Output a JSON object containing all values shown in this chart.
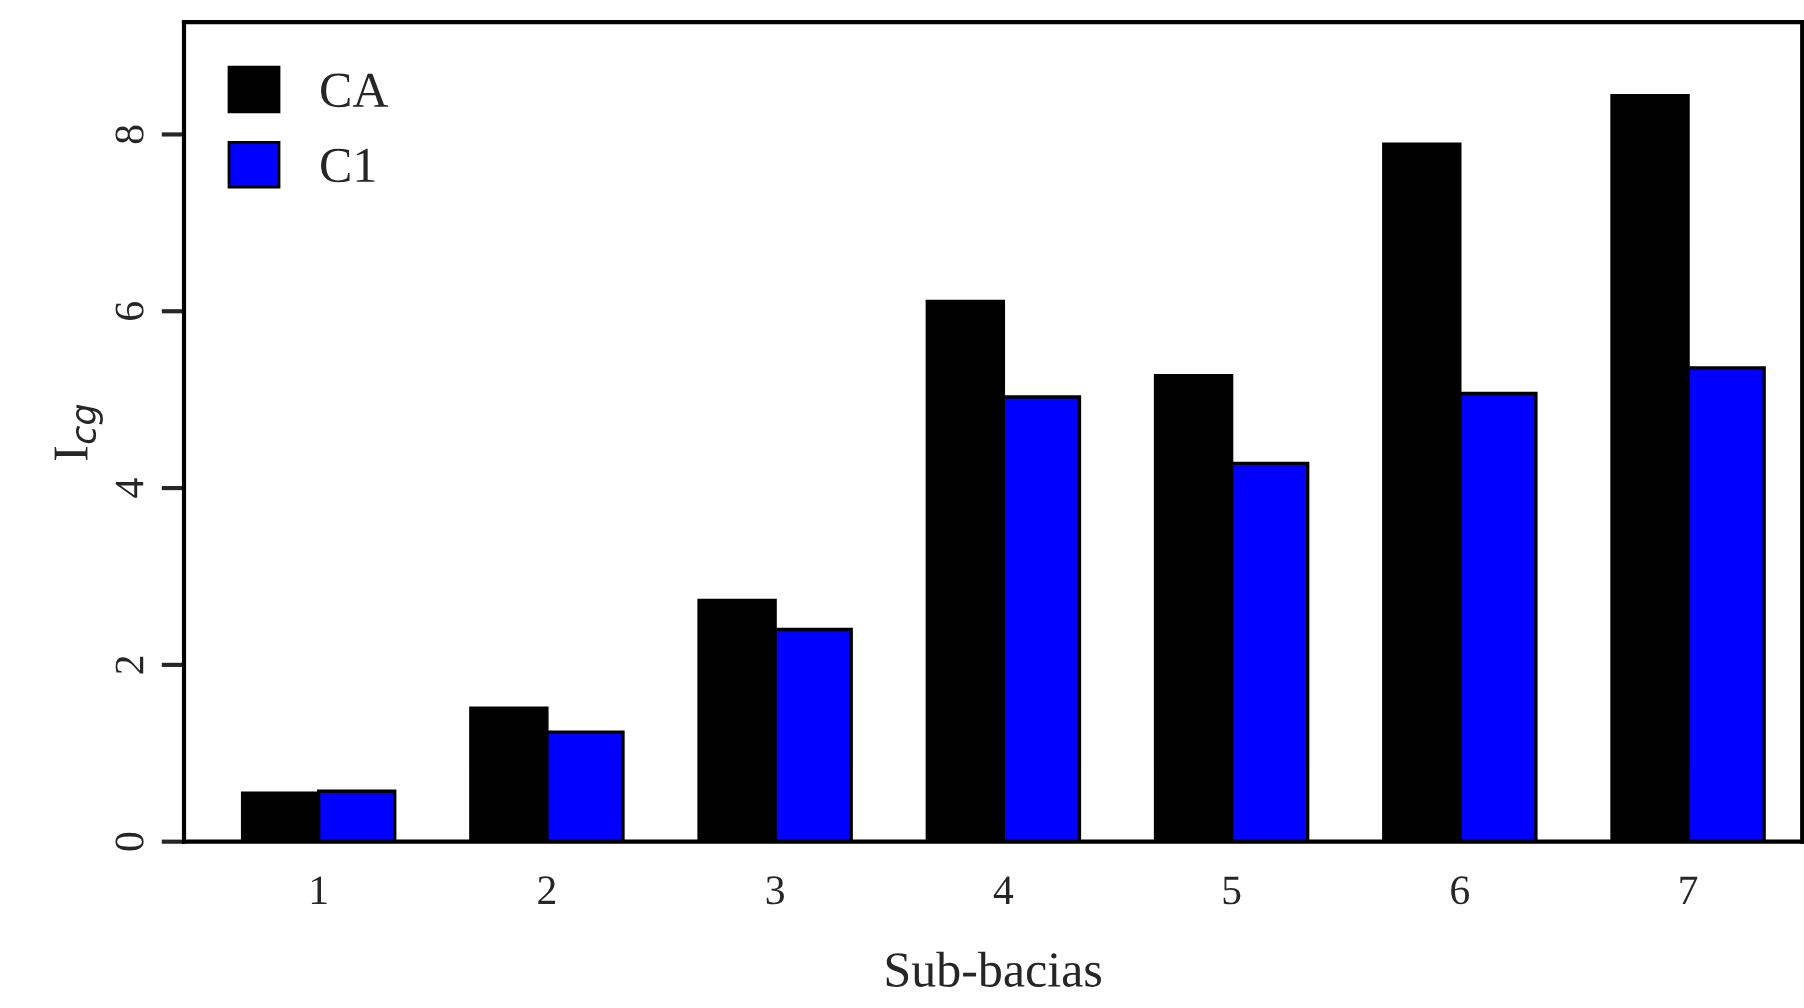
{
  "chart_data": {
    "type": "bar",
    "xlabel": "Sub-bacias",
    "ylabel": "I$_{cg}$",
    "categories": [
      "1",
      "2",
      "3",
      "4",
      "5",
      "6",
      "7"
    ],
    "series": [
      {
        "name": "CA",
        "color": "#000000",
        "values": [
          0.55,
          1.51,
          2.73,
          6.11,
          5.27,
          7.89,
          8.44
        ]
      },
      {
        "name": "C1",
        "color": "#0000ff",
        "values": [
          0.57,
          1.24,
          2.4,
          5.03,
          4.28,
          5.07,
          5.36
        ]
      }
    ],
    "ylim": [
      0,
      9.27
    ],
    "yticks": [
      0,
      2,
      4,
      6,
      8
    ],
    "grid": false,
    "legend": "top left"
  }
}
